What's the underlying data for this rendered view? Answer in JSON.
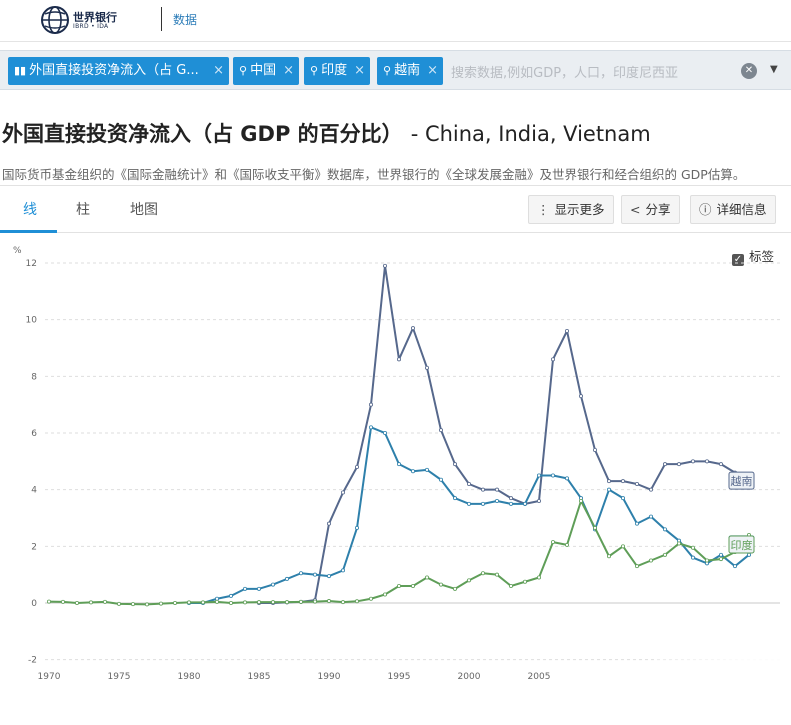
{
  "header": {
    "logo_title": "世界银行",
    "logo_sub": "IBRD • IDA",
    "nav_data": "数据"
  },
  "search": {
    "chips": [
      {
        "icon": "bar-chart-icon",
        "label": "外国直接投资净流入（占 G..."
      },
      {
        "icon": "location-pin-icon",
        "label": "中国"
      },
      {
        "icon": "location-pin-icon",
        "label": "印度"
      },
      {
        "icon": "location-pin-icon",
        "label": "越南"
      }
    ],
    "remove": "×",
    "placeholder": "搜索数据,例如GDP，人口，印度尼西亚"
  },
  "page": {
    "title": "外国直接投资净流入（占 GDP 的百分比）",
    "countries": "- China, India, Vietnam",
    "source": "国际货币基金组织的《国际金融统计》和《国际收支平衡》数据库，世界银行的《全球发展金融》及世界银行和经合组织的 GDP估算。"
  },
  "tabs": {
    "line": "线",
    "bar": "柱",
    "map": "地图"
  },
  "toolbar": {
    "more": "显示更多",
    "share": "分享",
    "details": "详细信息"
  },
  "labels_toggle": "标签",
  "colors": {
    "accent": "#1f8fd6",
    "vietnam": "#56688c",
    "china": "#2e80ab",
    "india": "#5f9e58"
  },
  "chart_data": {
    "type": "line",
    "ylabel": "%",
    "ylim": [
      -2,
      12
    ],
    "yticks": [
      -2,
      0,
      2,
      4,
      6,
      8,
      10,
      12
    ],
    "xticks": [
      1970,
      1975,
      1980,
      1985,
      1990,
      1995,
      2000,
      2005
    ],
    "grid": true,
    "legend": "end-labels",
    "series": [
      {
        "name": "越南",
        "color": "#56688c",
        "x": [
          1985,
          1986,
          1987,
          1988,
          1989,
          1990,
          1991,
          1992,
          1993,
          1994,
          1995,
          1996,
          1997,
          1998,
          1999,
          2000,
          2001,
          2002,
          2003,
          2004,
          2005,
          2006,
          2007,
          2008,
          2009,
          2010,
          2011,
          2012,
          2013,
          2014,
          2015,
          2016,
          2017,
          2018,
          2019,
          2020
        ],
        "values": [
          0.0,
          0.0,
          0.02,
          0.04,
          0.1,
          2.8,
          3.9,
          4.8,
          7.0,
          11.9,
          8.6,
          9.7,
          8.3,
          6.1,
          4.9,
          4.2,
          4.0,
          4.0,
          3.7,
          3.5,
          3.6,
          8.6,
          9.6,
          7.3,
          5.4,
          4.3,
          4.3,
          4.2,
          4.0,
          4.9,
          4.9,
          5.0,
          5.0,
          4.9,
          4.6,
          4.3
        ]
      },
      {
        "name": "中国",
        "color": "#2e80ab",
        "x": [
          1980,
          1981,
          1982,
          1983,
          1984,
          1985,
          1986,
          1987,
          1988,
          1989,
          1990,
          1991,
          1992,
          1993,
          1994,
          1995,
          1996,
          1997,
          1998,
          1999,
          2000,
          2001,
          2002,
          2003,
          2004,
          2005,
          2006,
          2007,
          2008,
          2009,
          2010,
          2011,
          2012,
          2013,
          2014,
          2015,
          2016,
          2017,
          2018,
          2019,
          2020
        ],
        "values": [
          0.0,
          0.0,
          0.15,
          0.25,
          0.5,
          0.5,
          0.65,
          0.85,
          1.05,
          1.0,
          0.95,
          1.15,
          2.65,
          6.2,
          6.0,
          4.9,
          4.65,
          4.7,
          4.35,
          3.7,
          3.5,
          3.5,
          3.6,
          3.5,
          3.5,
          4.5,
          4.5,
          4.4,
          3.7,
          2.6,
          4.0,
          3.7,
          2.8,
          3.05,
          2.6,
          2.2,
          1.6,
          1.4,
          1.7,
          1.3,
          1.7
        ]
      },
      {
        "name": "印度",
        "color": "#5f9e58",
        "x": [
          1970,
          1971,
          1972,
          1973,
          1974,
          1975,
          1976,
          1977,
          1978,
          1979,
          1980,
          1981,
          1982,
          1983,
          1984,
          1985,
          1986,
          1987,
          1988,
          1989,
          1990,
          1991,
          1992,
          1993,
          1994,
          1995,
          1996,
          1997,
          1998,
          1999,
          2000,
          2001,
          2002,
          2003,
          2004,
          2005,
          2006,
          2007,
          2008,
          2009,
          2010,
          2011,
          2012,
          2013,
          2014,
          2015,
          2016,
          2017,
          2018,
          2019,
          2020
        ],
        "values": [
          0.05,
          0.04,
          0.0,
          0.02,
          0.04,
          -0.03,
          -0.04,
          -0.05,
          -0.02,
          0.0,
          0.02,
          0.02,
          0.04,
          0.0,
          0.02,
          0.03,
          0.03,
          0.03,
          0.04,
          0.05,
          0.07,
          0.03,
          0.06,
          0.15,
          0.3,
          0.6,
          0.6,
          0.9,
          0.65,
          0.5,
          0.8,
          1.05,
          1.0,
          0.6,
          0.75,
          0.9,
          2.15,
          2.05,
          3.6,
          2.65,
          1.65,
          2.0,
          1.3,
          1.5,
          1.7,
          2.1,
          1.95,
          1.5,
          1.55,
          1.8,
          2.4
        ]
      }
    ]
  }
}
